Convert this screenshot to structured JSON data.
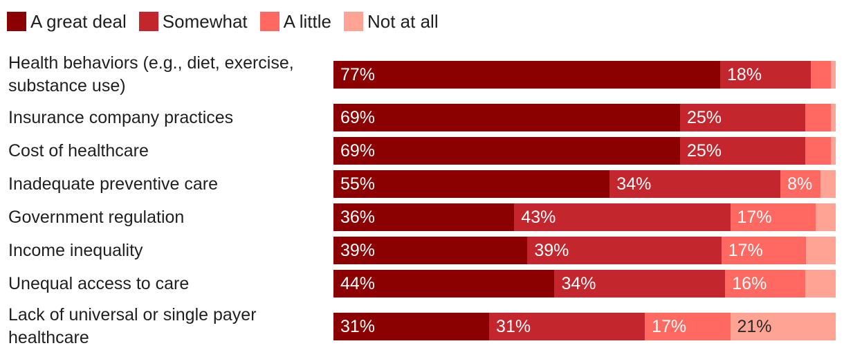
{
  "chart_data": {
    "type": "bar",
    "orientation": "horizontal",
    "stacked": true,
    "legend_position": "top-left",
    "xlim": [
      0,
      100
    ],
    "categories": [
      "Health behaviors (e.g., diet, exercise, substance use)",
      "Insurance company practices",
      "Cost of healthcare",
      "Inadequate preventive care",
      "Government regulation",
      "Income inequality",
      "Unequal access to care",
      "Lack of universal or single payer healthcare"
    ],
    "series": [
      {
        "name": "A great deal",
        "color": "#8b0000",
        "values": [
          77,
          69,
          69,
          55,
          36,
          39,
          44,
          31
        ],
        "labels": [
          "77%",
          "69%",
          "69%",
          "55%",
          "36%",
          "39%",
          "44%",
          "31%"
        ],
        "label_color": "#ffffff"
      },
      {
        "name": "Somewhat",
        "color": "#c4262e",
        "values": [
          18,
          25,
          25,
          34,
          43,
          39,
          34,
          31
        ],
        "labels": [
          "18%",
          "25%",
          "25%",
          "34%",
          "43%",
          "39%",
          "34%",
          "31%"
        ],
        "label_color": "#ffffff"
      },
      {
        "name": "A little",
        "color": "#ff6961",
        "values": [
          4,
          5,
          5,
          8,
          17,
          17,
          16,
          17
        ],
        "labels": [
          "",
          "",
          "",
          "8%",
          "17%",
          "17%",
          "16%",
          "17%"
        ],
        "label_color": "#ffffff"
      },
      {
        "name": "Not at all",
        "color": "#ffa494",
        "values": [
          1,
          1,
          1,
          3,
          4,
          6,
          6,
          21
        ],
        "labels": [
          "",
          "",
          "",
          "",
          "",
          "",
          "",
          "21%"
        ],
        "label_color": "#2a2a2a"
      }
    ]
  }
}
